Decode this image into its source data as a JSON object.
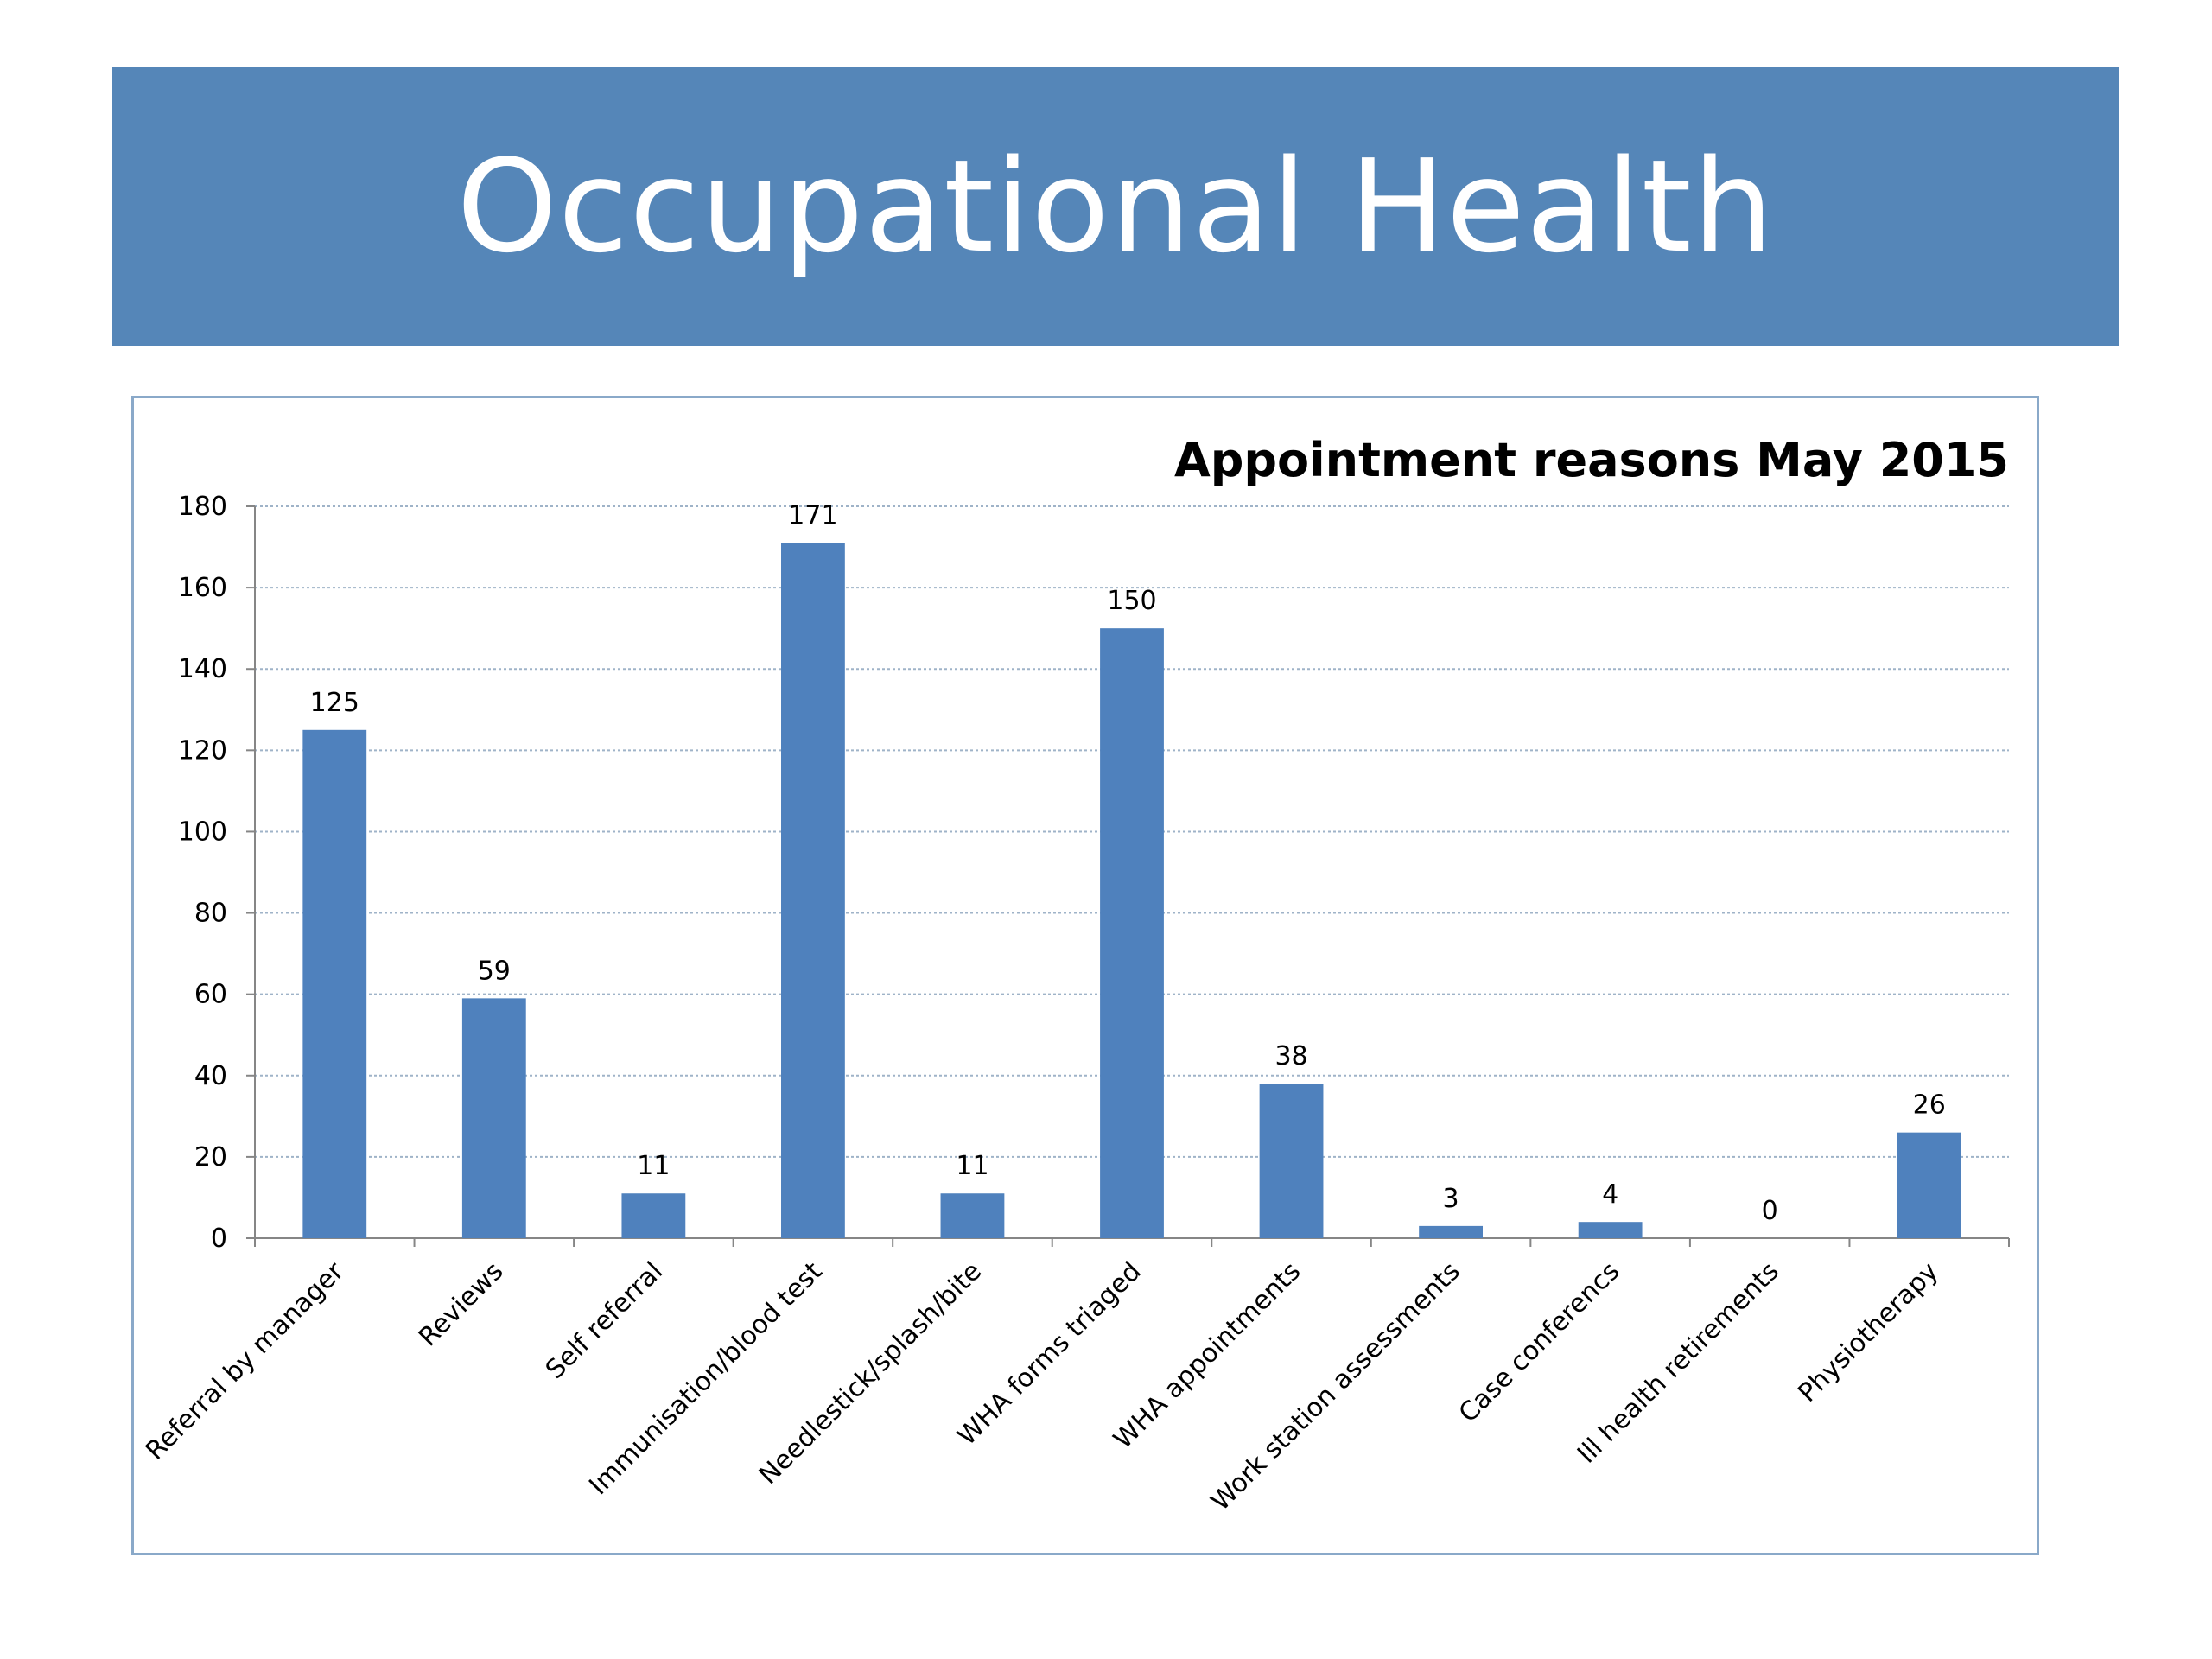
{
  "slide": {
    "title": "Occupational Health",
    "banner_color": "#5586b8"
  },
  "chart_data": {
    "type": "bar",
    "title": "Appointment reasons May 2015",
    "xlabel": "",
    "ylabel": "",
    "categories": [
      "Referral by manager",
      "Reviews",
      "Self referral",
      "Immunisation/blood test",
      "Needlestick/splash/bite",
      "WHA forms triaged",
      "WHA appointments",
      "Work station assessments",
      "Case conferencs",
      "Ill health retirements",
      "Physiotherapy"
    ],
    "values": [
      125,
      59,
      11,
      171,
      11,
      150,
      38,
      3,
      4,
      0,
      26
    ],
    "ylim": [
      0,
      180
    ],
    "yticks": [
      0,
      20,
      40,
      60,
      80,
      100,
      120,
      140,
      160,
      180
    ],
    "grid": true,
    "legend": "none",
    "bar_color": "#4f81bd"
  }
}
